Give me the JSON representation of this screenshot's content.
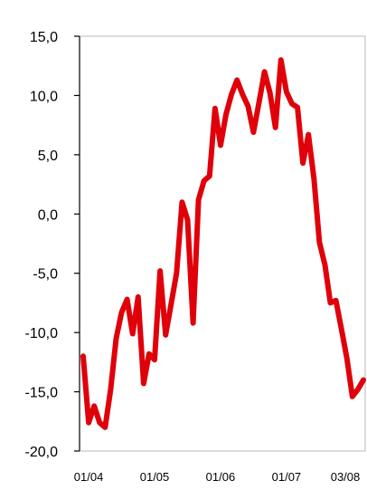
{
  "chart_data": {
    "type": "line",
    "title": "",
    "xlabel": "",
    "ylabel": "",
    "ylim": [
      -20,
      15
    ],
    "y_ticks": [
      15,
      10,
      5,
      0,
      -5,
      -10,
      -15,
      -20
    ],
    "y_tick_labels": [
      "15,0",
      "10,0",
      "5,0",
      "0,0",
      "-5,0",
      "-10,0",
      "-15,0",
      "-20,0"
    ],
    "x_tick_labels": [
      "01/04",
      "01/05",
      "01/06",
      "01/07",
      "03/08"
    ],
    "x_tick_dates": [
      "2004-01",
      "2005-01",
      "2006-01",
      "2007-01",
      "2008-03"
    ],
    "x_range": [
      "2003-12",
      "2008-03"
    ],
    "grid": false,
    "legend": "none",
    "series": [
      {
        "color": "#e0000a",
        "x": [
          "2003-12",
          "2004-01",
          "2004-02",
          "2004-03",
          "2004-04",
          "2004-05",
          "2004-06",
          "2004-07",
          "2004-08",
          "2004-09",
          "2004-10",
          "2004-11",
          "2004-12",
          "2005-01",
          "2005-02",
          "2005-03",
          "2005-04",
          "2005-05",
          "2005-06",
          "2005-07",
          "2005-08",
          "2005-09",
          "2005-10",
          "2005-11",
          "2005-12",
          "2006-01",
          "2006-02",
          "2006-03",
          "2006-04",
          "2006-05",
          "2006-06",
          "2006-07",
          "2006-08",
          "2006-09",
          "2006-10",
          "2006-11",
          "2006-12",
          "2007-01",
          "2007-02",
          "2007-03",
          "2007-04",
          "2007-05",
          "2007-06",
          "2007-07",
          "2007-08",
          "2007-09",
          "2007-10",
          "2007-11",
          "2007-12",
          "2008-01",
          "2008-02",
          "2008-03"
        ],
        "values": [
          -12.0,
          -17.6,
          -16.2,
          -17.6,
          -18.0,
          -14.8,
          -10.5,
          -8.3,
          -7.2,
          -10.1,
          -7.0,
          -14.3,
          -11.8,
          -12.3,
          -4.8,
          -10.2,
          -7.6,
          -5.0,
          1.0,
          -0.5,
          -9.2,
          1.2,
          2.8,
          3.2,
          8.9,
          5.8,
          8.4,
          10.1,
          11.3,
          10.1,
          9.1,
          6.9,
          9.4,
          12.0,
          10.2,
          7.3,
          13.0,
          10.3,
          9.3,
          9.0,
          4.3,
          6.7,
          3.0,
          -2.4,
          -4.3,
          -7.5,
          -7.3,
          -9.7,
          -12.2,
          -15.4,
          -14.8,
          -14.0
        ]
      }
    ]
  }
}
